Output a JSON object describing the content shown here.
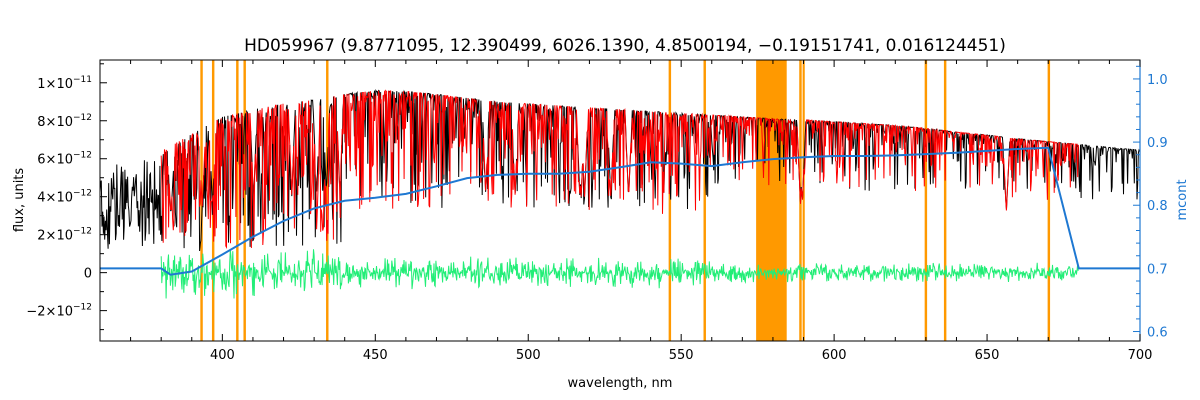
{
  "chart_data": {
    "type": "line",
    "title": "HD059967   (9.8771095, 12.390499, 6026.1390, 4.8500194, −0.19151741, 0.016124451)",
    "xlabel": "wavelength, nm",
    "ylabel": "flux, units",
    "y2label": "mcont",
    "xlim": [
      360,
      700
    ],
    "ylim": [
      -3.6e-12,
      1.12e-11
    ],
    "y2lim": [
      0.585,
      1.03
    ],
    "x_ticks": [
      400,
      450,
      500,
      550,
      600,
      650,
      700
    ],
    "x_tick_labels": [
      "400",
      "450",
      "500",
      "550",
      "600",
      "650",
      "700"
    ],
    "y_ticks": [
      -2e-12,
      0,
      2e-12,
      4e-12,
      6e-12,
      8e-12,
      1e-11
    ],
    "y_tick_labels": [
      {
        "mant": "−2×10",
        "exp": "−12"
      },
      {
        "mant": "0",
        "exp": ""
      },
      {
        "mant": "2×10",
        "exp": "−12"
      },
      {
        "mant": "4×10",
        "exp": "−12"
      },
      {
        "mant": "6×10",
        "exp": "−12"
      },
      {
        "mant": "8×10",
        "exp": "−12"
      },
      {
        "mant": "1×10",
        "exp": "−11"
      }
    ],
    "y2_ticks": [
      0.6,
      0.7,
      0.8,
      0.9,
      1.0
    ],
    "y2_tick_labels": [
      "0.6",
      "0.7",
      "0.8",
      "0.9",
      "1.0"
    ],
    "masked_bands": [
      [
        392.8,
        393.6
      ],
      [
        396.6,
        397.4
      ],
      [
        404.5,
        405.3
      ],
      [
        406.9,
        407.7
      ],
      [
        433.9,
        434.7
      ],
      [
        545.9,
        546.7
      ],
      [
        557.3,
        558.1
      ],
      [
        574.5,
        584.5
      ],
      [
        588.6,
        589.4
      ],
      [
        589.7,
        590.4
      ],
      [
        629.6,
        630.4
      ],
      [
        635.9,
        636.7
      ],
      [
        669.8,
        670.6
      ]
    ],
    "series": [
      {
        "name": "",
        "color": "#000000",
        "style": "observed",
        "x": [
          360,
          370,
          380,
          390,
          400,
          410,
          420,
          430,
          440,
          450,
          460,
          470,
          480,
          490,
          500,
          510,
          520,
          530,
          540,
          550,
          560,
          570,
          580,
          590,
          600,
          610,
          620,
          630,
          640,
          650,
          660,
          670,
          680,
          690,
          700
        ],
        "y": [
          5.4e-12,
          6.1e-12,
          6.2e-12,
          7.3e-12,
          8.2e-12,
          8.6e-12,
          8.9e-12,
          9.1e-12,
          9.4e-12,
          9.6e-12,
          9.55e-12,
          9.4e-12,
          9.2e-12,
          9e-12,
          8.9e-12,
          8.8e-12,
          8.7e-12,
          8.6e-12,
          8.5e-12,
          8.4e-12,
          8.3e-12,
          8.2e-12,
          8.1e-12,
          8.05e-12,
          7.95e-12,
          7.85e-12,
          7.75e-12,
          7.6e-12,
          7.4e-12,
          7.25e-12,
          7.05e-12,
          6.9e-12,
          6.75e-12,
          6.6e-12,
          6.45e-12
        ]
      },
      {
        "name": "",
        "color": "#ff0000",
        "style": "model",
        "x": [
          380,
          390,
          400,
          410,
          420,
          430,
          440,
          450,
          460,
          470,
          480,
          490,
          500,
          510,
          520,
          530,
          540,
          550,
          560,
          570,
          580,
          590,
          600,
          610,
          620,
          630,
          640,
          650,
          660,
          670,
          680
        ],
        "y": [
          6.4e-12,
          7.3e-12,
          8.2e-12,
          8.6e-12,
          8.9e-12,
          9.1e-12,
          9.4e-12,
          9.6e-12,
          9.55e-12,
          9.4e-12,
          9.2e-12,
          9e-12,
          8.9e-12,
          8.8e-12,
          8.7e-12,
          8.6e-12,
          8.5e-12,
          8.4e-12,
          8.3e-12,
          8.2e-12,
          8.1e-12,
          8.05e-12,
          7.95e-12,
          7.85e-12,
          7.75e-12,
          7.6e-12,
          7.4e-12,
          7.25e-12,
          7.05e-12,
          6.9e-12,
          6.75e-12
        ]
      },
      {
        "name": "",
        "color": "#22ee77",
        "style": "residual",
        "x": [
          380,
          680
        ],
        "y": [
          0,
          0
        ]
      },
      {
        "name": "",
        "color": "#1e78d2",
        "axis": "right",
        "style": "line",
        "x": [
          360,
          380,
          383,
          390,
          400,
          410,
          420,
          430,
          440,
          450,
          460,
          470,
          480,
          490,
          500,
          510,
          520,
          530,
          540,
          550,
          560,
          570,
          580,
          590,
          600,
          610,
          620,
          630,
          640,
          650,
          660,
          670,
          680,
          700
        ],
        "y": [
          0.7,
          0.7,
          0.69,
          0.695,
          0.722,
          0.75,
          0.775,
          0.795,
          0.807,
          0.812,
          0.818,
          0.83,
          0.843,
          0.848,
          0.85,
          0.85,
          0.853,
          0.86,
          0.868,
          0.866,
          0.862,
          0.868,
          0.873,
          0.876,
          0.878,
          0.878,
          0.879,
          0.881,
          0.883,
          0.886,
          0.889,
          0.891,
          0.7,
          0.7
        ]
      }
    ]
  }
}
